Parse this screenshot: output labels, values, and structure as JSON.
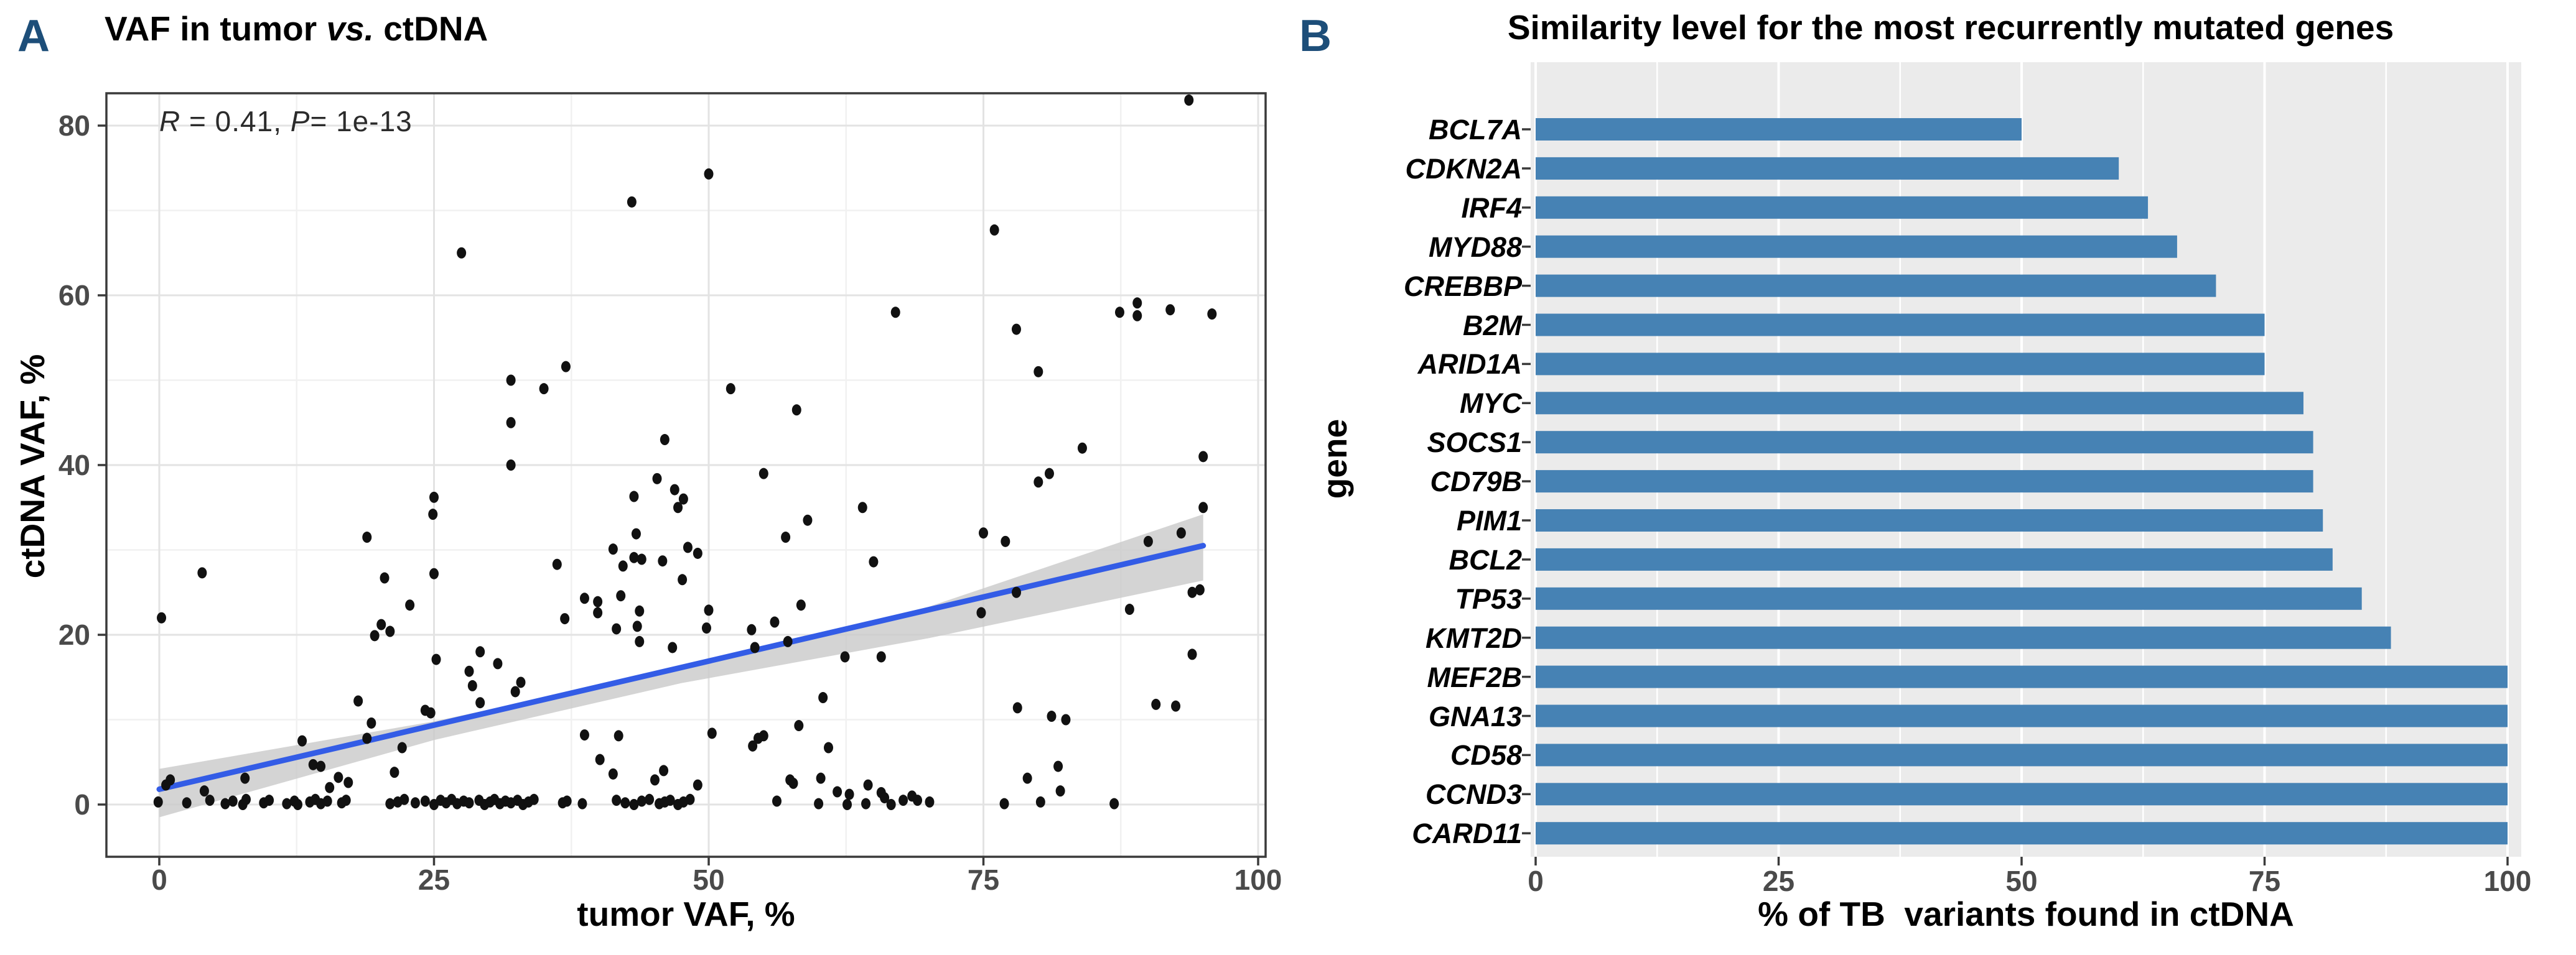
{
  "colors": {
    "panel_letter": "#1D4E79",
    "bar_blue": "#4682B4",
    "regression_blue": "#335CE6",
    "confidence_band": "#C9C9C9",
    "panel_bg_gray": "#EBEBEB",
    "dot_black": "#111111",
    "axis_dark": "#3A3A3A",
    "tick_text": "#4A4A4A"
  },
  "panel_a": {
    "label": "A",
    "title": {
      "pre": "VAF in tumor ",
      "vs": "vs.",
      "post": " ctDNA"
    },
    "annotation": {
      "r_var": "R",
      "r_mid": " = 0.41, ",
      "p_var": "P",
      "p_end": "= 1e-13"
    },
    "xlabel": "tumor VAF, %",
    "ylabel": "ctDNA VAF, %"
  },
  "panel_b": {
    "label": "B",
    "title": "Similarity level for the most recurrently mutated genes",
    "xlabel": "% of TB  variants found in ctDNA",
    "ylabel": "gene"
  },
  "chart_data": [
    {
      "type": "scatter",
      "title": "VAF in tumor vs. ctDNA",
      "xlabel": "tumor VAF, %",
      "ylabel": "ctDNA VAF, %",
      "annotation": "R = 0.41, P = 1e-13",
      "xlim": [
        -5,
        101
      ],
      "ylim": [
        -6.2,
        83.8
      ],
      "x_ticks": [
        0,
        25,
        50,
        75,
        100
      ],
      "y_ticks": [
        0,
        20,
        40,
        60,
        80
      ],
      "grid": true,
      "regression_line": {
        "x": [
          0,
          95
        ],
        "y": [
          1.8,
          30.5
        ]
      },
      "confidence_band": {
        "upper": [
          [
            0,
            4.2
          ],
          [
            25,
            9.8
          ],
          [
            47.5,
            16.0
          ],
          [
            70,
            23.3
          ],
          [
            95,
            34.2
          ]
        ],
        "lower": [
          [
            0,
            -1.5
          ],
          [
            25,
            7.6
          ],
          [
            47.5,
            14.3
          ],
          [
            70,
            19.6
          ],
          [
            95,
            26.4
          ]
        ]
      },
      "points": [
        [
          43,
          71
        ],
        [
          27.5,
          65
        ],
        [
          93.7,
          83
        ],
        [
          50,
          74.3
        ],
        [
          76,
          67.7
        ],
        [
          67,
          58
        ],
        [
          78,
          56
        ],
        [
          87.4,
          58
        ],
        [
          89,
          59.1
        ],
        [
          89,
          57.6
        ],
        [
          92,
          58.3
        ],
        [
          95.8,
          57.8
        ],
        [
          37,
          51.6
        ],
        [
          32,
          50
        ],
        [
          35,
          49
        ],
        [
          32,
          45
        ],
        [
          46,
          43
        ],
        [
          32,
          40
        ],
        [
          45.3,
          38.4
        ],
        [
          46.9,
          37.1
        ],
        [
          43.2,
          36.3
        ],
        [
          47.7,
          36
        ],
        [
          47.2,
          35
        ],
        [
          25,
          36.2
        ],
        [
          24.9,
          34.2
        ],
        [
          18.9,
          31.5
        ],
        [
          43.4,
          31.9
        ],
        [
          41.3,
          30.1
        ],
        [
          43.2,
          29.1
        ],
        [
          42.2,
          28.1
        ],
        [
          43.9,
          28.9
        ],
        [
          45.8,
          28.7
        ],
        [
          48.1,
          30.3
        ],
        [
          36.2,
          28.3
        ],
        [
          3.9,
          27.3
        ],
        [
          20.5,
          26.7
        ],
        [
          25,
          27.2
        ],
        [
          42,
          24.6
        ],
        [
          38.7,
          24.3
        ],
        [
          39.9,
          23.9
        ],
        [
          22.8,
          23.5
        ],
        [
          47.6,
          26.5
        ],
        [
          80,
          51
        ],
        [
          52,
          49
        ],
        [
          58,
          46.5
        ],
        [
          84,
          42
        ],
        [
          95,
          41
        ],
        [
          81,
          39
        ],
        [
          80,
          38
        ],
        [
          55,
          39
        ],
        [
          64,
          35
        ],
        [
          59,
          33.5
        ],
        [
          57,
          31.5
        ],
        [
          95,
          35
        ],
        [
          75,
          32
        ],
        [
          77,
          31
        ],
        [
          90,
          31
        ],
        [
          93,
          32
        ],
        [
          49,
          29.6
        ],
        [
          65,
          28.6
        ],
        [
          78,
          25
        ],
        [
          94,
          25
        ],
        [
          94.7,
          25.3
        ],
        [
          58.4,
          23.5
        ],
        [
          0.2,
          22
        ],
        [
          20.2,
          21.2
        ],
        [
          21,
          20.4
        ],
        [
          19.6,
          19.9
        ],
        [
          39.9,
          22.6
        ],
        [
          36.9,
          21.9
        ],
        [
          43.7,
          22.8
        ],
        [
          43.5,
          21
        ],
        [
          41.6,
          20.7
        ],
        [
          43.7,
          19.2
        ],
        [
          46.7,
          18.5
        ],
        [
          25.2,
          17.1
        ],
        [
          29.2,
          18
        ],
        [
          30.8,
          16.6
        ],
        [
          28.2,
          15.7
        ],
        [
          28.5,
          14
        ],
        [
          29.2,
          12
        ],
        [
          32.9,
          14.4
        ],
        [
          32.4,
          13.3
        ],
        [
          24.2,
          11.1
        ],
        [
          24.7,
          10.8
        ],
        [
          18.1,
          12.2
        ],
        [
          19.3,
          9.6
        ],
        [
          18.9,
          7.8
        ],
        [
          13,
          7.5
        ],
        [
          14,
          4.7
        ],
        [
          14.7,
          4.5
        ],
        [
          7.8,
          3.1
        ],
        [
          1,
          2.9
        ],
        [
          0.6,
          2.3
        ],
        [
          4.1,
          1.6
        ],
        [
          16.3,
          3.2
        ],
        [
          17.2,
          2.6
        ],
        [
          15.5,
          2
        ],
        [
          21.4,
          3.8
        ],
        [
          22.1,
          6.7
        ],
        [
          38.7,
          8.2
        ],
        [
          40.1,
          5.3
        ],
        [
          41.8,
          8.1
        ],
        [
          41.3,
          3.6
        ],
        [
          45.9,
          4
        ],
        [
          45.1,
          2.9
        ],
        [
          -0.1,
          0.3
        ],
        [
          2.5,
          0.2
        ],
        [
          4.6,
          0.5
        ],
        [
          6,
          0.1
        ],
        [
          6.7,
          0.4
        ],
        [
          7.6,
          0
        ],
        [
          7.9,
          0.6
        ],
        [
          9.5,
          0.2
        ],
        [
          10,
          0.5
        ],
        [
          11.6,
          0.1
        ],
        [
          12.3,
          0.4
        ],
        [
          12.6,
          0
        ],
        [
          13.7,
          0.3
        ],
        [
          14.2,
          0.6
        ],
        [
          14.7,
          0.1
        ],
        [
          15.3,
          0.4
        ],
        [
          16.6,
          0.2
        ],
        [
          17,
          0.5
        ],
        [
          21,
          0.1
        ],
        [
          21.7,
          0.3
        ],
        [
          22.3,
          0.6
        ],
        [
          23.3,
          0.2
        ],
        [
          24.2,
          0.4
        ],
        [
          25,
          0
        ],
        [
          25.6,
          0.5
        ],
        [
          26.1,
          0.2
        ],
        [
          26.6,
          0.6
        ],
        [
          27.1,
          0.1
        ],
        [
          27.7,
          0.4
        ],
        [
          28.2,
          0.2
        ],
        [
          29.1,
          0.5
        ],
        [
          29.6,
          0
        ],
        [
          30.1,
          0.3
        ],
        [
          30.5,
          0.6
        ],
        [
          31,
          0.1
        ],
        [
          31.5,
          0.4
        ],
        [
          32,
          0.2
        ],
        [
          32.6,
          0.5
        ],
        [
          33.1,
          0
        ],
        [
          33.6,
          0.3
        ],
        [
          34.1,
          0.6
        ],
        [
          36.7,
          0.2
        ],
        [
          37.1,
          0.4
        ],
        [
          38.5,
          0.1
        ],
        [
          41.6,
          0.5
        ],
        [
          42.4,
          0.2
        ],
        [
          43.2,
          0
        ],
        [
          43.9,
          0.4
        ],
        [
          44.6,
          0.6
        ],
        [
          45.5,
          0.1
        ],
        [
          46,
          0.3
        ],
        [
          46.5,
          0.5
        ],
        [
          47.2,
          0
        ],
        [
          47.7,
          0.3
        ],
        [
          48.3,
          0.6
        ],
        [
          50,
          22.9
        ],
        [
          74.8,
          22.6
        ],
        [
          88.3,
          23
        ],
        [
          49.8,
          20.8
        ],
        [
          56,
          21.5
        ],
        [
          53.9,
          20.6
        ],
        [
          54.2,
          18.5
        ],
        [
          57.2,
          19.2
        ],
        [
          62.4,
          17.4
        ],
        [
          65.7,
          17.4
        ],
        [
          94,
          17.7
        ],
        [
          60.4,
          12.6
        ],
        [
          78.1,
          11.4
        ],
        [
          81.2,
          10.4
        ],
        [
          82.5,
          10
        ],
        [
          90.7,
          11.8
        ],
        [
          92.5,
          11.6
        ],
        [
          58.2,
          9.3
        ],
        [
          50.3,
          8.4
        ],
        [
          54.5,
          7.8
        ],
        [
          55,
          8.1
        ],
        [
          54,
          6.9
        ],
        [
          60.9,
          6.7
        ],
        [
          81.8,
          4.5
        ],
        [
          79,
          3.1
        ],
        [
          57.4,
          2.9
        ],
        [
          57.7,
          2.5
        ],
        [
          60.2,
          3.1
        ],
        [
          64.5,
          2.3
        ],
        [
          61.7,
          1.5
        ],
        [
          62.8,
          1.2
        ],
        [
          65.7,
          1.4
        ],
        [
          66,
          0.8
        ],
        [
          67.7,
          0.5
        ],
        [
          68.5,
          1
        ],
        [
          69,
          0.5
        ],
        [
          70.1,
          0.3
        ],
        [
          56.2,
          0.4
        ],
        [
          60,
          0.1
        ],
        [
          62.6,
          0
        ],
        [
          64.3,
          0.1
        ],
        [
          66.6,
          0
        ],
        [
          76.9,
          0.1
        ],
        [
          80.2,
          0.3
        ],
        [
          82,
          1.6
        ],
        [
          86.9,
          0.1
        ],
        [
          49,
          2.3
        ]
      ]
    },
    {
      "type": "bar",
      "orientation": "horizontal",
      "title": "Similarity level for the most recurrently mutated genes",
      "xlabel": "% of TB variants found in ctDNA",
      "ylabel": "gene",
      "categories": [
        "BCL7A",
        "CDKN2A",
        "IRF4",
        "MYD88",
        "CREBBP",
        "B2M",
        "ARID1A",
        "MYC",
        "SOCS1",
        "CD79B",
        "PIM1",
        "BCL2",
        "TP53",
        "KMT2D",
        "MEF2B",
        "GNA13",
        "CD58",
        "CCND3",
        "CARD11"
      ],
      "values": [
        50,
        60,
        63,
        66,
        70,
        75,
        75,
        79,
        80,
        80,
        81,
        82,
        85,
        88,
        100,
        100,
        100,
        100,
        100
      ],
      "xlim": [
        0,
        101
      ],
      "x_ticks": [
        0,
        25,
        50,
        75,
        100
      ],
      "grid": true,
      "legend": false
    }
  ]
}
